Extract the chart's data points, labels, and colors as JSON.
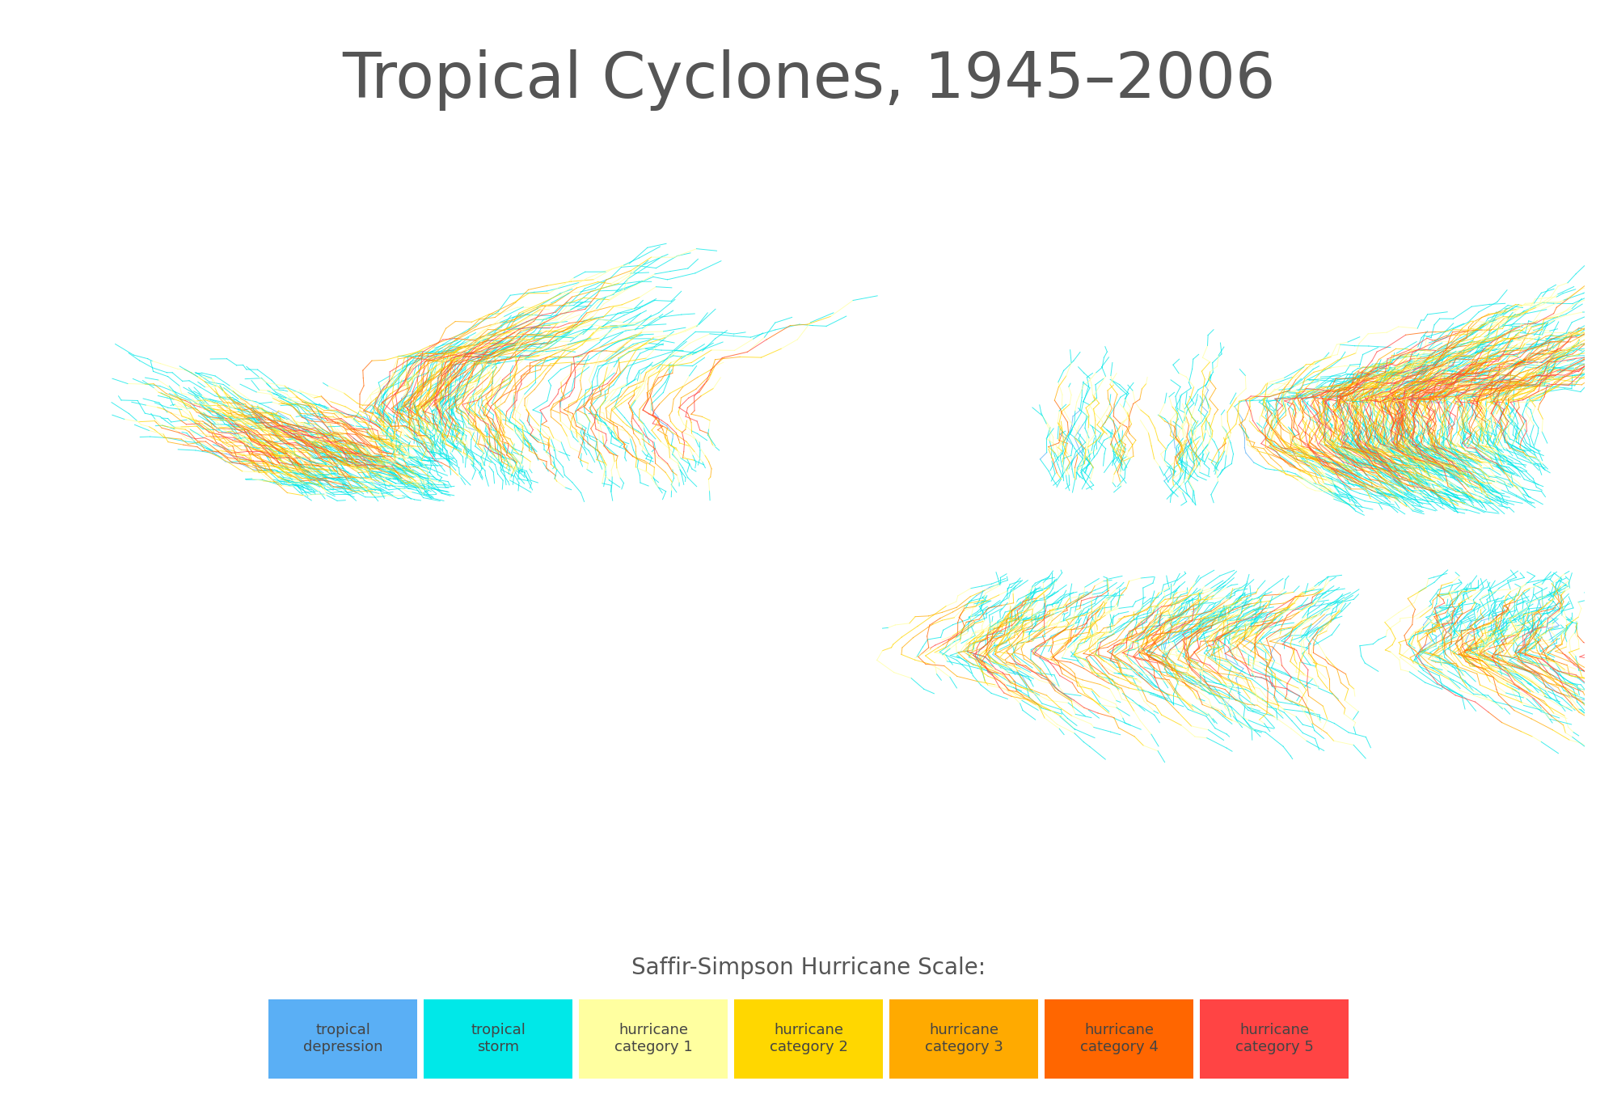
{
  "title": "Tropical Cyclones, 1945–2006",
  "title_color": "#555555",
  "title_fontsize": 56,
  "background_color": "#ffffff",
  "ocean_color": "#e8e8e8",
  "land_color": "#d0d0d0",
  "land_edge_color": "#aaaaaa",
  "legend_title": "Saffir-Simpson Hurricane Scale:",
  "legend_title_fontsize": 20,
  "legend_labels": [
    "tropical\ndepression",
    "tropical\nstorm",
    "hurricane\ncategory 1",
    "hurricane\ncategory 2",
    "hurricane\ncategory 3",
    "hurricane\ncategory 4",
    "hurricane\ncategory 5"
  ],
  "legend_colors": [
    "#5aaff5",
    "#00e8e8",
    "#ffffa0",
    "#ffd700",
    "#ffaa00",
    "#ff6600",
    "#ff4444"
  ],
  "legend_text_color": "#555555",
  "legend_fontsize": 13,
  "cat_colors": {
    "-1": "#5aaff5",
    "0": "#00e8e8",
    "1": "#ffffa0",
    "2": "#ffd700",
    "3": "#ffaa00",
    "4": "#ff6600",
    "5": "#ff4444"
  },
  "grid_color": "#cccccc",
  "grid_linewidth": 0.5,
  "track_alpha_low": 0.75,
  "track_alpha_high": 0.85,
  "track_lw_low": 0.7,
  "track_lw_high": 1.0,
  "n_westpac": 320,
  "n_epac": 160,
  "n_atlantic": 200,
  "n_indian_nh": 80,
  "n_sh_indian": 150,
  "n_sh_pac": 120,
  "n_sh_waus": 80
}
